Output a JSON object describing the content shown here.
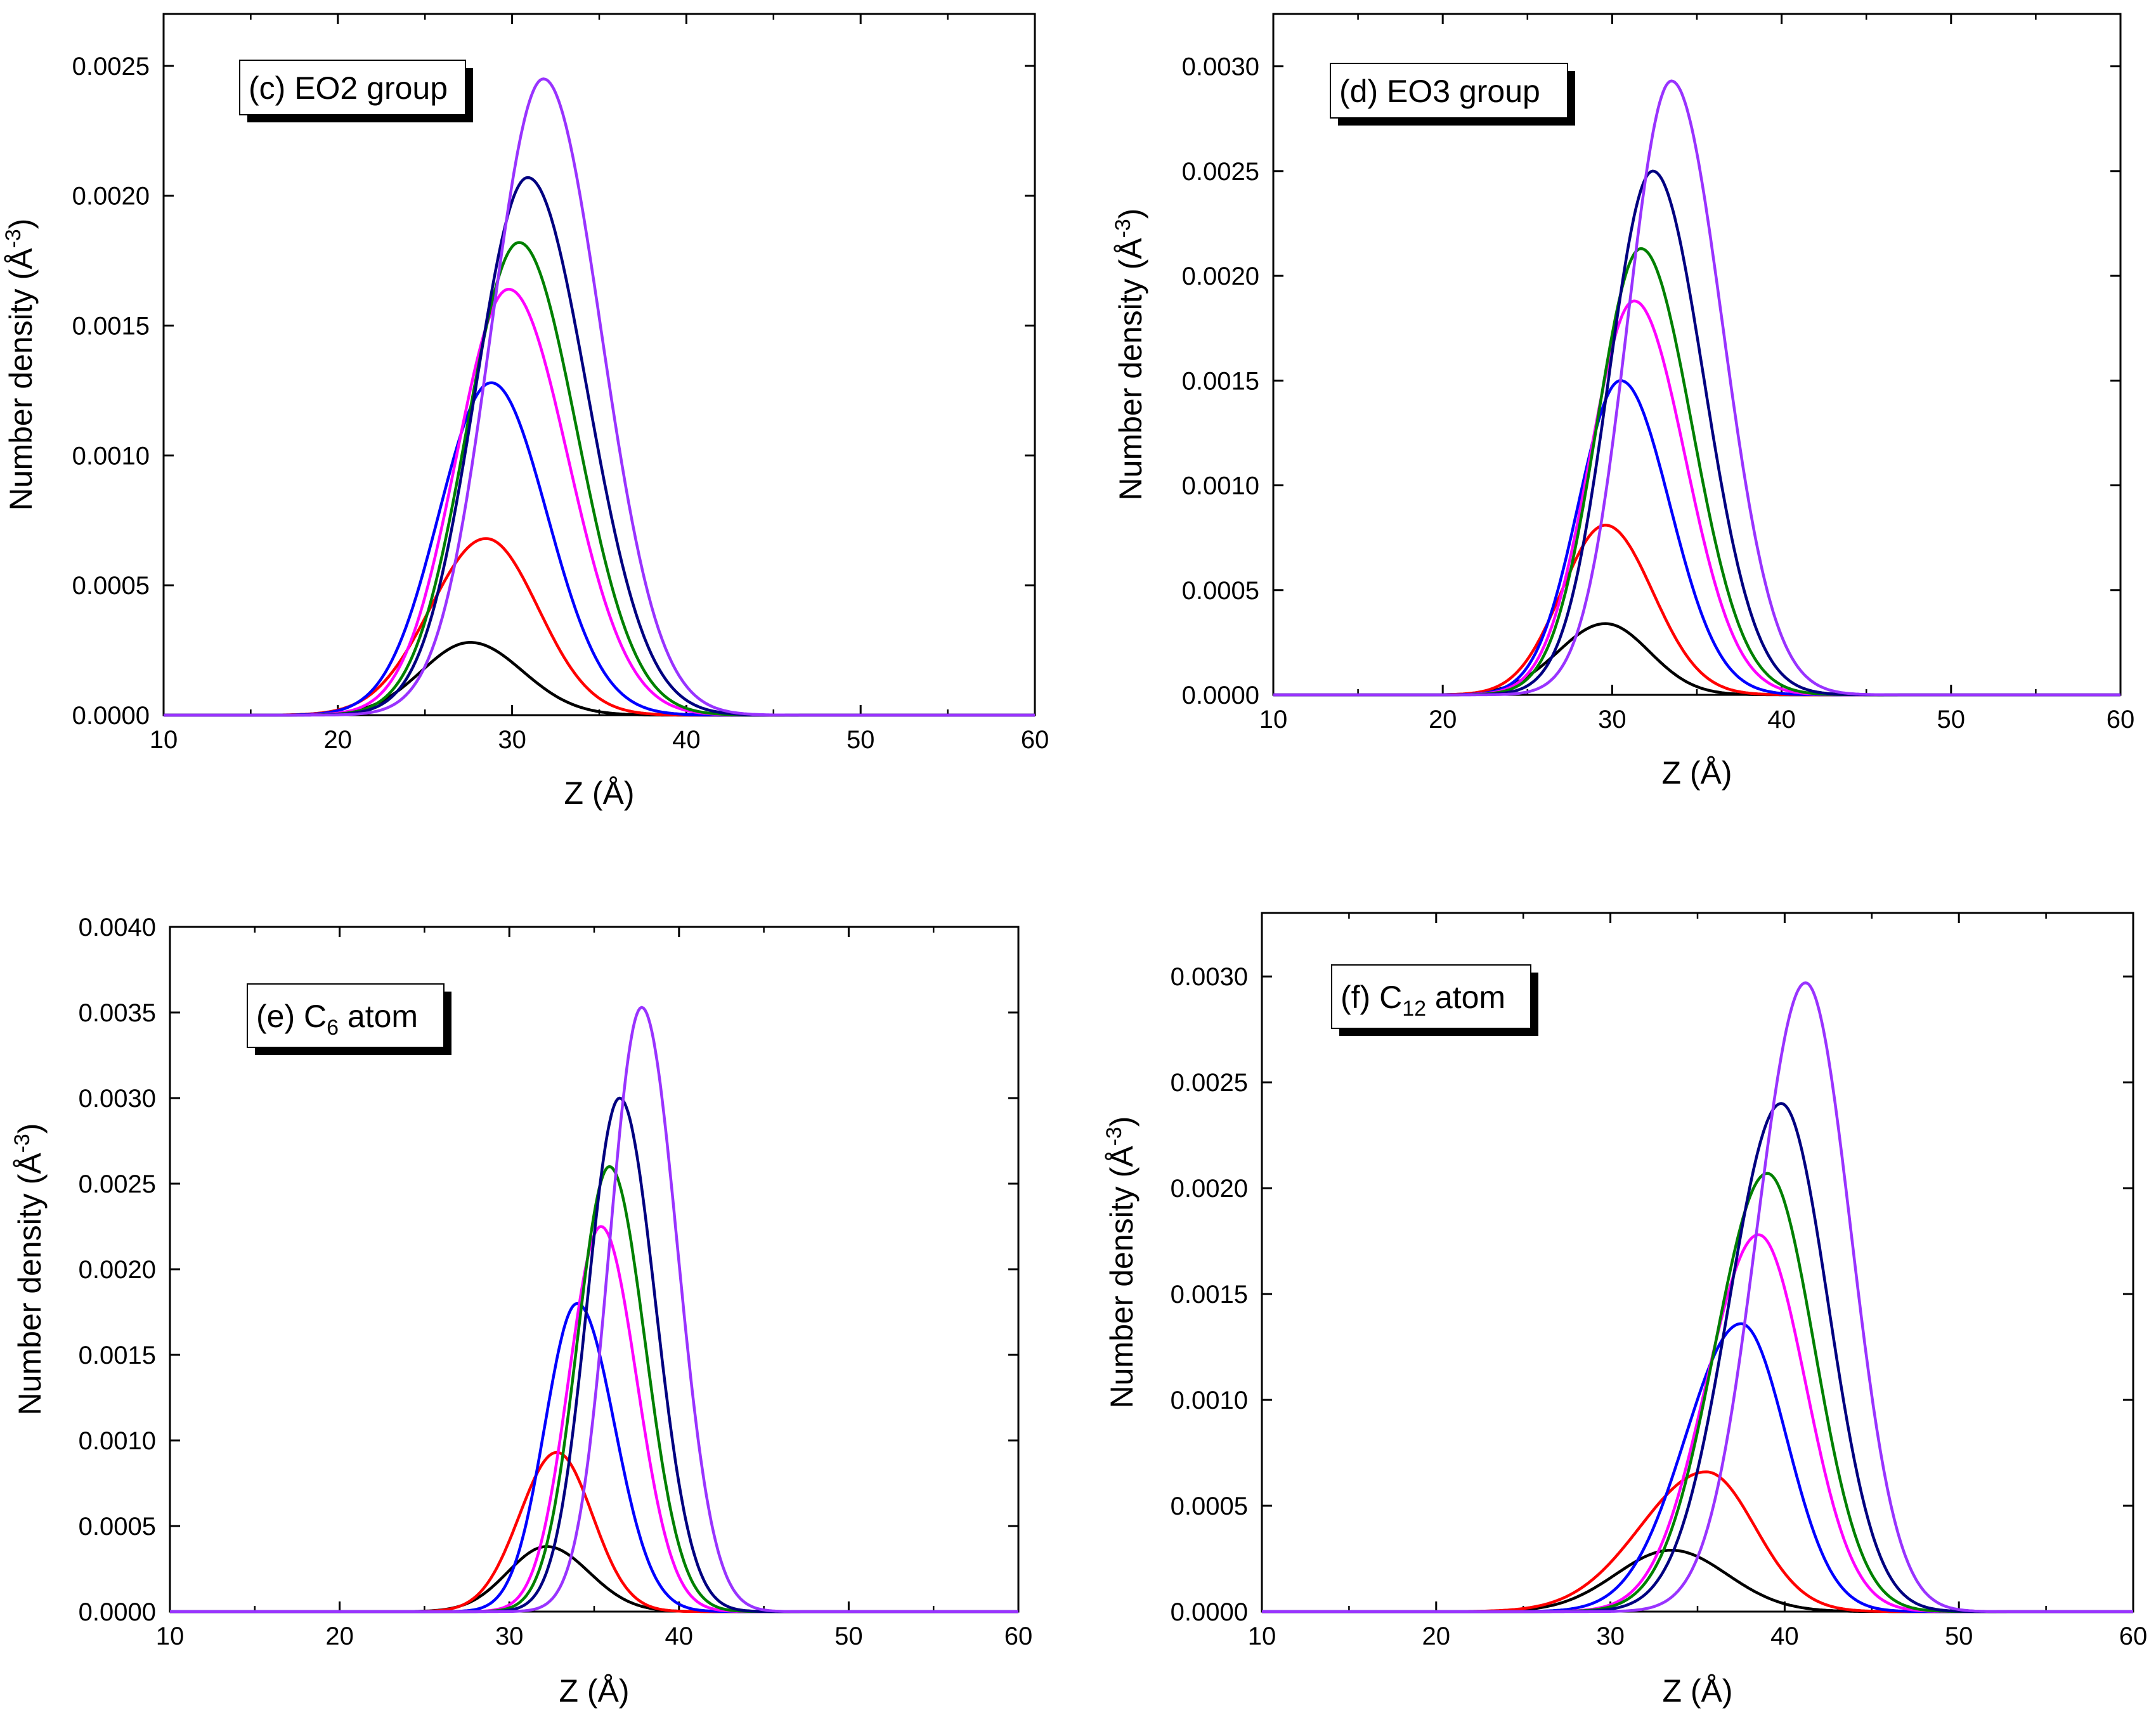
{
  "chart_data": [
    {
      "type": "line",
      "label_prefix": "(c) EO2 group",
      "label_sub": "",
      "label_suffix": "",
      "xlabel": "Z (Å)",
      "ylabel": "Number density (Å",
      "ylabel_sup": "-3",
      "ylabel_end": ")",
      "xlim": [
        10,
        60
      ],
      "ylim": [
        0,
        0.0027
      ],
      "xticks": [
        10,
        20,
        30,
        40,
        50,
        60
      ],
      "yticks": [
        0,
        0.0005,
        0.001,
        0.0015,
        0.002,
        0.0025
      ],
      "ytick_labels": [
        "0.0000",
        "0.0005",
        "0.0010",
        "0.0015",
        "0.0020",
        "0.0025"
      ],
      "series": [
        {
          "color": "#000000",
          "peaks": [
            {
              "x": 27.6,
              "y": 0.00028,
              "sl": 2.8,
              "sr": 3.0
            }
          ]
        },
        {
          "color": "#ff0000",
          "peaks": [
            {
              "x": 28.5,
              "y": 0.00068,
              "sl": 3.2,
              "sr": 3.0
            }
          ]
        },
        {
          "color": "#0000ff",
          "peaks": [
            {
              "x": 28.8,
              "y": 0.00128,
              "sl": 3.0,
              "sr": 3.2
            }
          ]
        },
        {
          "color": "#ff00ff",
          "peaks": [
            {
              "x": 29.8,
              "y": 0.00164,
              "sl": 3.0,
              "sr": 3.4
            }
          ]
        },
        {
          "color": "#008000",
          "peaks": [
            {
              "x": 30.4,
              "y": 0.00182,
              "sl": 3.0,
              "sr": 3.3
            }
          ]
        },
        {
          "color": "#000080",
          "peaks": [
            {
              "x": 30.9,
              "y": 0.00207,
              "sl": 3.0,
              "sr": 3.4
            }
          ]
        },
        {
          "color": "#9933ff",
          "peaks": [
            {
              "x": 31.8,
              "y": 0.00245,
              "sl": 3.0,
              "sr": 3.3
            }
          ]
        }
      ]
    },
    {
      "type": "line",
      "label_prefix": "(d) EO3 group",
      "label_sub": "",
      "label_suffix": "",
      "xlabel": "Z (Å)",
      "ylabel": "Number density (Å",
      "ylabel_sup": "-3",
      "ylabel_end": ")",
      "xlim": [
        10,
        60
      ],
      "ylim": [
        0,
        0.00325
      ],
      "xticks": [
        10,
        20,
        30,
        40,
        50,
        60
      ],
      "yticks": [
        0,
        0.0005,
        0.001,
        0.0015,
        0.002,
        0.0025,
        0.003
      ],
      "ytick_labels": [
        "0.0000",
        "0.0005",
        "0.0010",
        "0.0015",
        "0.0020",
        "0.0025",
        "0.0030"
      ],
      "series": [
        {
          "color": "#000000",
          "peaks": [
            {
              "x": 29.6,
              "y": 0.00034,
              "sl": 2.8,
              "sr": 2.6
            }
          ]
        },
        {
          "color": "#ff0000",
          "peaks": [
            {
              "x": 29.6,
              "y": 0.00081,
              "sl": 2.6,
              "sr": 2.8
            }
          ]
        },
        {
          "color": "#0000ff",
          "peaks": [
            {
              "x": 30.5,
              "y": 0.0015,
              "sl": 2.5,
              "sr": 2.9
            }
          ]
        },
        {
          "color": "#ff00ff",
          "peaks": [
            {
              "x": 31.3,
              "y": 0.00188,
              "sl": 2.6,
              "sr": 3.0
            }
          ]
        },
        {
          "color": "#008000",
          "peaks": [
            {
              "x": 31.7,
              "y": 0.00213,
              "sl": 2.6,
              "sr": 3.0
            }
          ]
        },
        {
          "color": "#000080",
          "peaks": [
            {
              "x": 32.4,
              "y": 0.0025,
              "sl": 2.6,
              "sr": 3.0
            }
          ]
        },
        {
          "color": "#9933ff",
          "peaks": [
            {
              "x": 33.5,
              "y": 0.00293,
              "sl": 2.6,
              "sr": 3.0
            }
          ]
        }
      ]
    },
    {
      "type": "line",
      "label_prefix": "(e) C",
      "label_sub": "6",
      "label_suffix": " atom",
      "xlabel": "Z (Å)",
      "ylabel": "Number density (Å",
      "ylabel_sup": "-3",
      "ylabel_end": ")",
      "xlim": [
        10,
        60
      ],
      "ylim": [
        0,
        0.004
      ],
      "xticks": [
        10,
        20,
        30,
        40,
        50,
        60
      ],
      "yticks": [
        0,
        0.0005,
        0.001,
        0.0015,
        0.002,
        0.0025,
        0.003,
        0.0035,
        0.004
      ],
      "ytick_labels": [
        "0.0000",
        "0.0005",
        "0.0010",
        "0.0015",
        "0.0020",
        "0.0025",
        "0.0030",
        "0.0035",
        "0.0040"
      ],
      "series": [
        {
          "color": "#000000",
          "peaks": [
            {
              "x": 32.2,
              "y": 0.00038,
              "sl": 2.3,
              "sr": 2.5
            }
          ]
        },
        {
          "color": "#ff0000",
          "peaks": [
            {
              "x": 32.8,
              "y": 0.00093,
              "sl": 2.2,
              "sr": 2.1
            }
          ]
        },
        {
          "color": "#0000ff",
          "peaks": [
            {
              "x": 34.0,
              "y": 0.0018,
              "sl": 1.9,
              "sr": 2.2
            }
          ]
        },
        {
          "color": "#ff00ff",
          "peaks": [
            {
              "x": 35.4,
              "y": 0.00225,
              "sl": 1.9,
              "sr": 2.1
            }
          ]
        },
        {
          "color": "#008000",
          "peaks": [
            {
              "x": 35.9,
              "y": 0.0026,
              "sl": 1.9,
              "sr": 2.1
            }
          ]
        },
        {
          "color": "#000080",
          "peaks": [
            {
              "x": 36.5,
              "y": 0.003,
              "sl": 1.9,
              "sr": 2.1
            }
          ]
        },
        {
          "color": "#9933ff",
          "peaks": [
            {
              "x": 37.8,
              "y": 0.00353,
              "sl": 1.9,
              "sr": 2.1
            }
          ]
        }
      ]
    },
    {
      "type": "line",
      "label_prefix": "(f) C",
      "label_sub": "12",
      "label_suffix": " atom",
      "xlabel": "Z (Å)",
      "ylabel": "Number density (Å",
      "ylabel_sup": "-3",
      "ylabel_end": ")",
      "xlim": [
        10,
        60
      ],
      "ylim": [
        0,
        0.0033
      ],
      "xticks": [
        10,
        20,
        30,
        40,
        50,
        60
      ],
      "yticks": [
        0,
        0.0005,
        0.001,
        0.0015,
        0.002,
        0.0025,
        0.003
      ],
      "ytick_labels": [
        "0.0000",
        "0.0005",
        "0.0010",
        "0.0015",
        "0.0020",
        "0.0025",
        "0.0030"
      ],
      "series": [
        {
          "color": "#000000",
          "peaks": [
            {
              "x": 33.5,
              "y": 0.00029,
              "sl": 3.2,
              "sr": 3.2
            }
          ]
        },
        {
          "color": "#ff0000",
          "peaks": [
            {
              "x": 35.5,
              "y": 0.00066,
              "sl": 3.8,
              "sr": 2.8
            }
          ]
        },
        {
          "color": "#0000ff",
          "peaks": [
            {
              "x": 37.5,
              "y": 0.00136,
              "sl": 3.2,
              "sr": 2.6
            }
          ]
        },
        {
          "color": "#ff00ff",
          "peaks": [
            {
              "x": 38.5,
              "y": 0.00178,
              "sl": 3.0,
              "sr": 2.7
            }
          ]
        },
        {
          "color": "#008000",
          "peaks": [
            {
              "x": 39.0,
              "y": 0.00207,
              "sl": 3.0,
              "sr": 2.7
            }
          ]
        },
        {
          "color": "#000080",
          "peaks": [
            {
              "x": 39.8,
              "y": 0.0024,
              "sl": 3.0,
              "sr": 2.7
            }
          ]
        },
        {
          "color": "#9933ff",
          "peaks": [
            {
              "x": 41.2,
              "y": 0.00297,
              "sl": 2.8,
              "sr": 2.6
            }
          ]
        }
      ]
    }
  ]
}
